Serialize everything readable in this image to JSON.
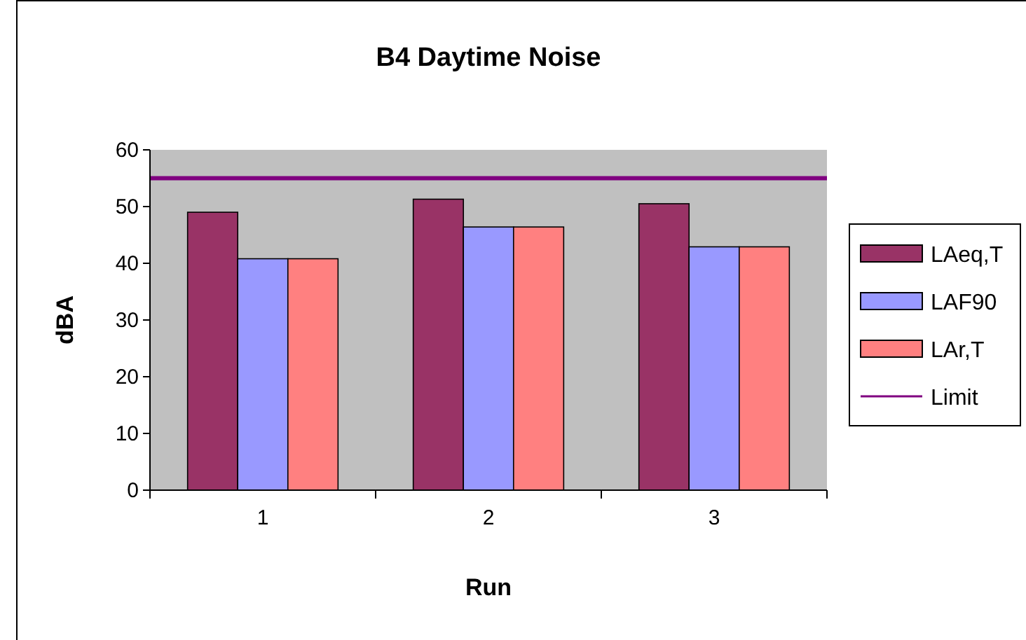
{
  "chart_data": {
    "type": "bar",
    "title": "B4 Daytime Noise",
    "xlabel": "Run",
    "ylabel": "dBA",
    "categories": [
      "1",
      "2",
      "3"
    ],
    "series": [
      {
        "name": "LAeq,T",
        "color": "#993366",
        "values": [
          49.0,
          51.3,
          50.5
        ]
      },
      {
        "name": "LAF90",
        "color": "#9999ff",
        "values": [
          40.8,
          46.4,
          42.9
        ]
      },
      {
        "name": "LAr,T",
        "color": "#ff8080",
        "values": [
          40.8,
          46.4,
          42.9
        ]
      }
    ],
    "ref_lines": [
      {
        "axis": "y",
        "value": 55,
        "label": "Limit",
        "color": "#800080"
      }
    ],
    "ylim": [
      0,
      60
    ],
    "yticks": [
      0,
      10,
      20,
      30,
      40,
      50,
      60
    ],
    "grid": false,
    "legend": "right"
  }
}
